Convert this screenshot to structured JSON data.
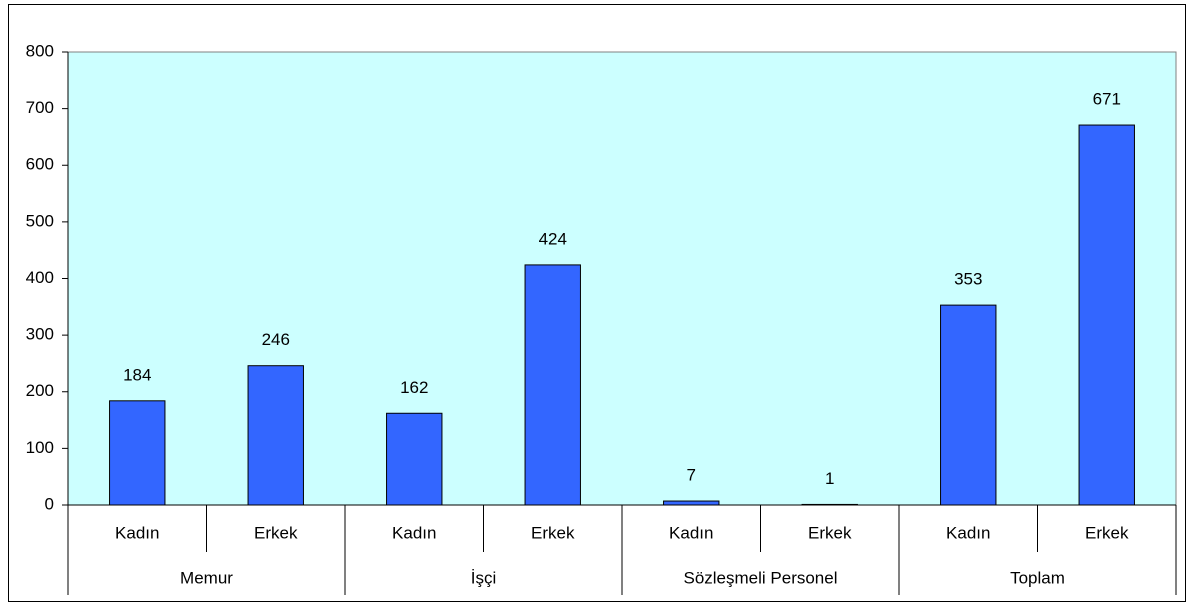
{
  "chart_data": {
    "type": "bar",
    "categories": [
      "Kadın",
      "Erkek",
      "Kadın",
      "Erkek",
      "Kadın",
      "Erkek",
      "Kadın",
      "Erkek"
    ],
    "groups": [
      "Memur",
      "İşçi",
      "Sözleşmeli Personel",
      "Toplam"
    ],
    "values": [
      184,
      246,
      162,
      424,
      7,
      1,
      353,
      671
    ],
    "color": "#3366ff",
    "plot_background": "#ccffff",
    "ylim": [
      0,
      800
    ],
    "yticks": [
      0,
      100,
      200,
      300,
      400,
      500,
      600,
      700,
      800
    ],
    "grid": false
  }
}
